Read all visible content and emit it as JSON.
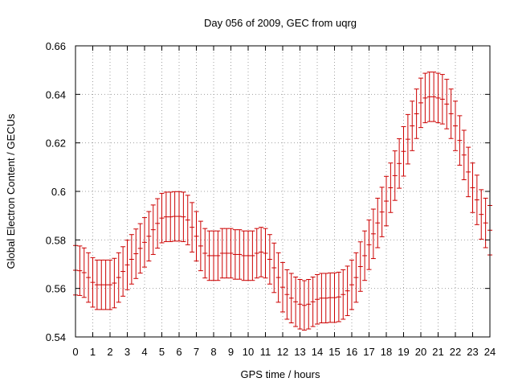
{
  "chart_data": {
    "type": "line",
    "title": "Day 056 of 2009, GEC from uqrg",
    "xlabel": "GPS time / hours",
    "ylabel": "Global Electron Content / GECUs",
    "xlim": [
      0,
      24
    ],
    "ylim": [
      0.54,
      0.66
    ],
    "grid": true,
    "x_tick_labels": [
      "0",
      "1",
      "2",
      "3",
      "4",
      "5",
      "6",
      "7",
      "8",
      "9",
      "10",
      "11",
      "12",
      "13",
      "14",
      "15",
      "16",
      "17",
      "18",
      "19",
      "20",
      "21",
      "22",
      "23",
      "24"
    ],
    "x_ticks": [
      0,
      1,
      2,
      3,
      4,
      5,
      6,
      7,
      8,
      9,
      10,
      11,
      12,
      13,
      14,
      15,
      16,
      17,
      18,
      19,
      20,
      21,
      22,
      23,
      24
    ],
    "y_tick_labels": [
      "0.54",
      "0.56",
      "0.58",
      "0.6",
      "0.62",
      "0.64",
      "0.66"
    ],
    "y_ticks": [
      0.54,
      0.56,
      0.58,
      0.6,
      0.62,
      0.64,
      0.66
    ],
    "series": [
      {
        "name": "GEC",
        "color": "#cc0000",
        "error": 0.0102,
        "x": [
          0,
          0.25,
          0.5,
          0.75,
          1,
          1.25,
          1.5,
          1.75,
          2,
          2.25,
          2.5,
          2.75,
          3,
          3.25,
          3.5,
          3.75,
          4,
          4.25,
          4.5,
          4.75,
          5,
          5.25,
          5.5,
          5.75,
          6,
          6.25,
          6.5,
          6.75,
          7,
          7.25,
          7.5,
          7.75,
          8,
          8.25,
          8.5,
          8.75,
          9,
          9.25,
          9.5,
          9.75,
          10,
          10.25,
          10.5,
          10.75,
          11,
          11.25,
          11.5,
          11.75,
          12,
          12.25,
          12.5,
          12.75,
          13,
          13.25,
          13.5,
          13.75,
          14,
          14.25,
          14.5,
          14.75,
          15,
          15.25,
          15.5,
          15.75,
          16,
          16.25,
          16.5,
          16.75,
          17,
          17.25,
          17.5,
          17.75,
          18,
          18.25,
          18.5,
          18.75,
          19,
          19.25,
          19.5,
          19.75,
          20,
          20.25,
          20.5,
          20.75,
          21,
          21.25,
          21.5,
          21.75,
          22,
          22.25,
          22.5,
          22.75,
          23,
          23.25,
          23.5,
          23.75,
          24
        ],
        "y": [
          0.5675,
          0.5673,
          0.5665,
          0.5645,
          0.5625,
          0.5615,
          0.5615,
          0.5615,
          0.5615,
          0.5622,
          0.5645,
          0.567,
          0.5697,
          0.572,
          0.5743,
          0.5765,
          0.579,
          0.5815,
          0.5842,
          0.5868,
          0.589,
          0.5895,
          0.5895,
          0.5897,
          0.5897,
          0.5895,
          0.5882,
          0.5852,
          0.5815,
          0.5775,
          0.5745,
          0.5735,
          0.5735,
          0.5735,
          0.5745,
          0.5745,
          0.5745,
          0.574,
          0.574,
          0.5735,
          0.5735,
          0.5735,
          0.5745,
          0.575,
          0.5745,
          0.572,
          0.5685,
          0.5645,
          0.5605,
          0.5575,
          0.556,
          0.5545,
          0.5535,
          0.553,
          0.5535,
          0.5545,
          0.5555,
          0.556,
          0.556,
          0.5562,
          0.5562,
          0.5565,
          0.5575,
          0.559,
          0.5615,
          0.5645,
          0.569,
          0.5735,
          0.578,
          0.5825,
          0.587,
          0.5915,
          0.596,
          0.6015,
          0.6065,
          0.6115,
          0.6165,
          0.6215,
          0.627,
          0.632,
          0.6365,
          0.6385,
          0.639,
          0.639,
          0.6385,
          0.638,
          0.636,
          0.632,
          0.627,
          0.621,
          0.615,
          0.608,
          0.6015,
          0.5965,
          0.5905,
          0.587,
          0.584
        ]
      }
    ]
  }
}
